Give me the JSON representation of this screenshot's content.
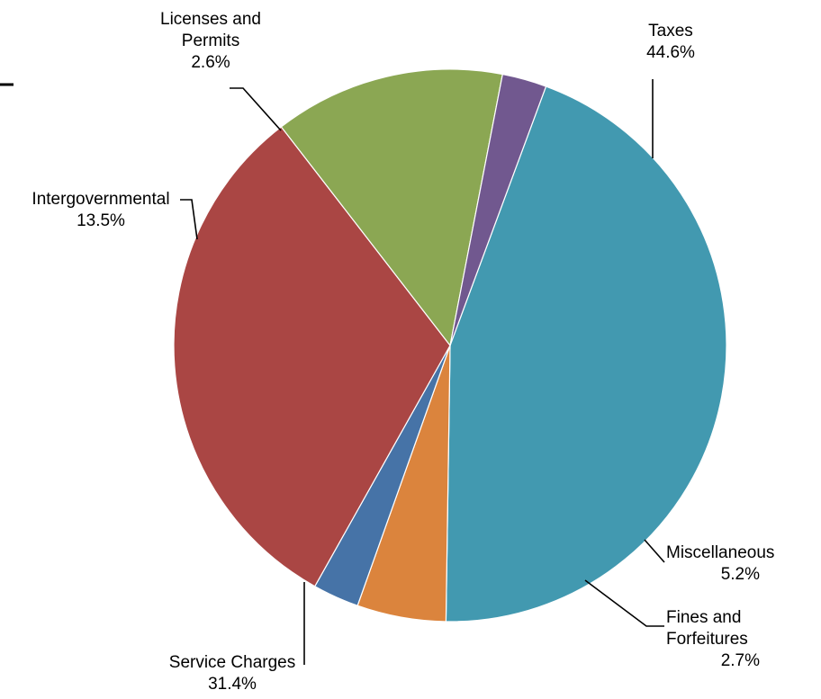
{
  "chart_data": {
    "type": "pie",
    "title": "",
    "start_angle_deg": -69.7,
    "direction": "clockwise",
    "slices": [
      {
        "name": "Taxes",
        "label_lines": [
          "Taxes",
          "44.6%"
        ],
        "value": 44.6,
        "percent_label": "44.6%",
        "color": "#4299B0"
      },
      {
        "name": "Miscellaneous",
        "label_lines": [
          "Miscellaneous",
          "5.2%"
        ],
        "value": 5.2,
        "percent_label": "5.2%",
        "color": "#DB843D"
      },
      {
        "name": "Fines and Forfeitures",
        "label_lines": [
          "Fines and",
          "Forfeitures",
          "2.7%"
        ],
        "value": 2.7,
        "percent_label": "2.7%",
        "color": "#4673A7"
      },
      {
        "name": "Service Charges",
        "label_lines": [
          "Service Charges",
          "31.4%"
        ],
        "value": 31.4,
        "percent_label": "31.4%",
        "color": "#AA4644"
      },
      {
        "name": "Intergovernmental",
        "label_lines": [
          "Intergovernmental",
          "13.5%"
        ],
        "value": 13.5,
        "percent_label": "13.5%",
        "color": "#8BA753"
      },
      {
        "name": "Licenses and Permits",
        "label_lines": [
          "Licenses and",
          "Permits",
          "2.6%"
        ],
        "value": 2.6,
        "percent_label": "2.6%",
        "color": "#71588F"
      }
    ]
  }
}
